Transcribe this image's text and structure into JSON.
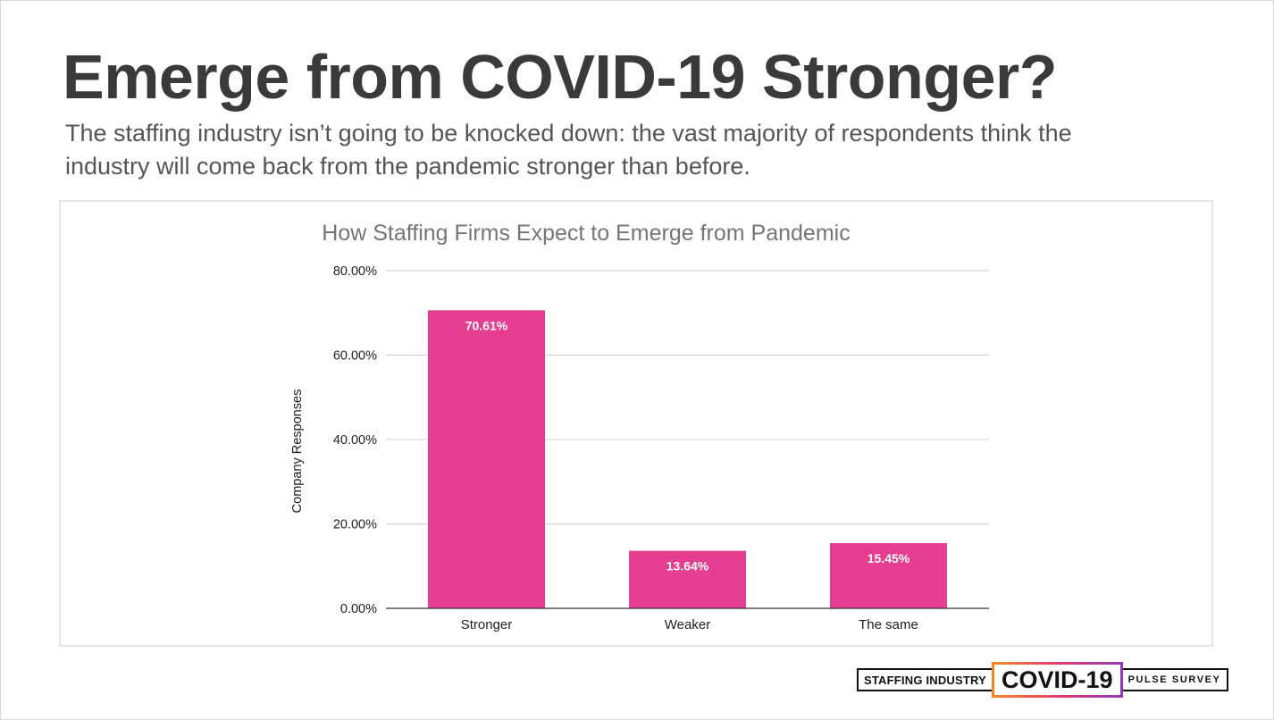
{
  "slide": {
    "title": "Emerge from COVID-19 Stronger?",
    "subtitle": "The staffing industry isn’t going to be knocked down: the vast majority of respondents think the industry will come back from the pandemic stronger than before."
  },
  "footer": {
    "left_text": "STAFFING INDUSTRY",
    "center_text": "COVID-19",
    "right_text": "PULSE SURVEY"
  },
  "colors": {
    "bar": "#e53d8f",
    "grid": "#cccccc",
    "axis": "#333333",
    "title_text": "#757575",
    "label_text": "#222222",
    "data_label": "#ffffff"
  },
  "chart_data": {
    "type": "bar",
    "title": "How Staffing Firms Expect to Emerge from Pandemic",
    "xlabel": "",
    "ylabel": "Company Responses",
    "categories": [
      "Stronger",
      "Weaker",
      "The same"
    ],
    "values": [
      70.61,
      13.64,
      15.45
    ],
    "data_labels": [
      "70.61%",
      "13.64%",
      "15.45%"
    ],
    "ylim": [
      0,
      80
    ],
    "yticks": [
      0,
      20,
      40,
      60,
      80
    ],
    "ytick_labels": [
      "0.00%",
      "20.00%",
      "40.00%",
      "60.00%",
      "80.00%"
    ],
    "grid": true,
    "legend": "none"
  }
}
